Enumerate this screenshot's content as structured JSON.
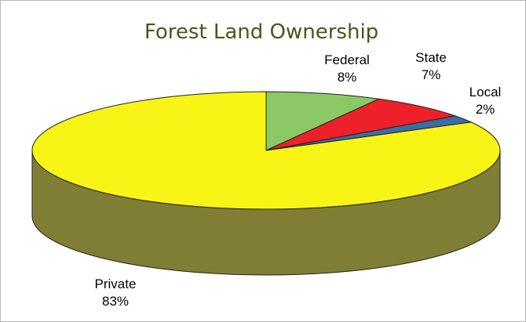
{
  "chart_data": {
    "type": "pie",
    "title": "Forest Land Ownership",
    "categories": [
      "Federal",
      "State",
      "Local",
      "Private"
    ],
    "values": [
      8,
      7,
      2,
      83
    ],
    "labels": [
      "8%",
      "7%",
      "2%",
      "83%"
    ],
    "colors": [
      "#8ac965",
      "#ee2029",
      "#3c6ca3",
      "#f8f416"
    ],
    "side_colors": [
      "#5d8a44",
      "#a8161d",
      "#284a73",
      "#807e34"
    ],
    "three_d": true
  }
}
